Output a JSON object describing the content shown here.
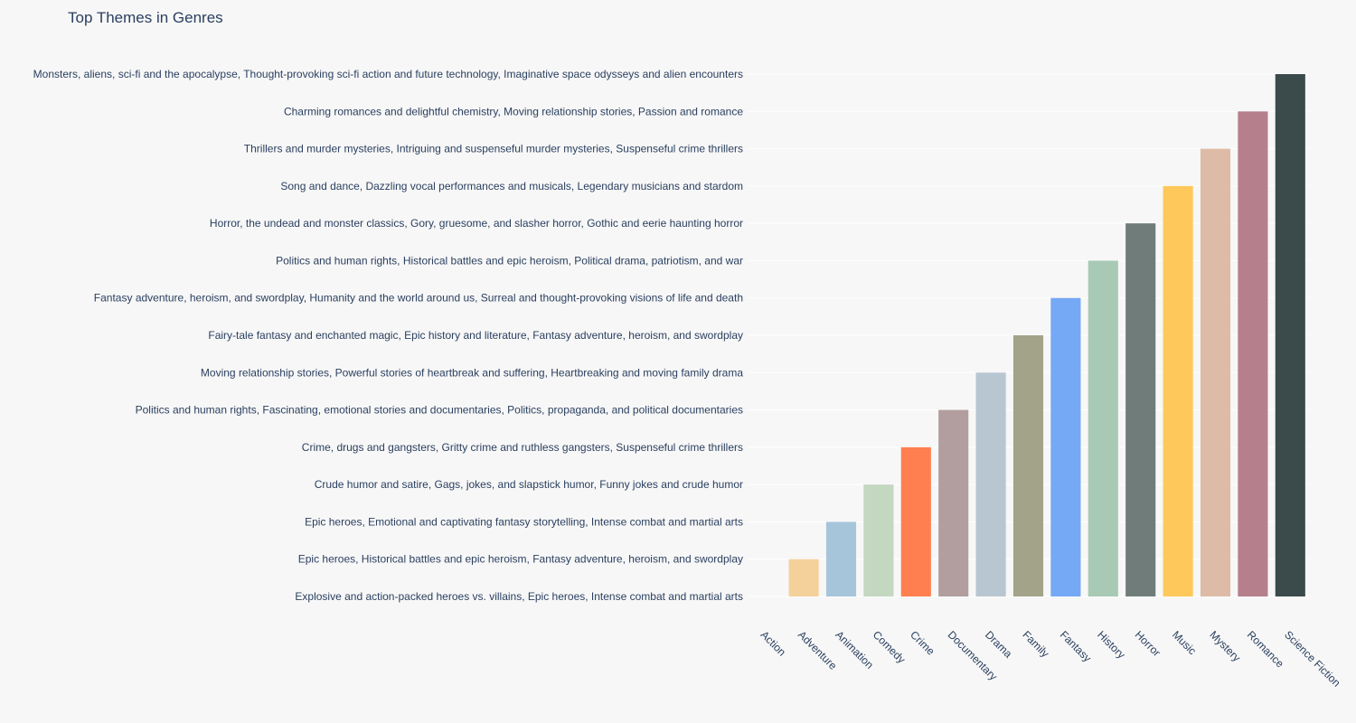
{
  "chart_data": {
    "type": "bar",
    "title": "Top Themes in Genres",
    "xlabel": "",
    "ylabel": "",
    "grid": true,
    "legend": "none",
    "categories": [
      "Action",
      "Adventure",
      "Animation",
      "Comedy",
      "Crime",
      "Documentary",
      "Drama",
      "Family",
      "Fantasy",
      "History",
      "Horror",
      "Music",
      "Mystery",
      "Romance",
      "Science Fiction"
    ],
    "y_categories": [
      "Explosive and action-packed heroes vs. villains, Epic heroes, Intense combat and martial arts",
      "Epic heroes, Historical battles and epic heroism, Fantasy adventure, heroism, and swordplay",
      "Epic heroes, Emotional and captivating fantasy storytelling, Intense combat and martial arts",
      "Crude humor and satire, Gags, jokes, and slapstick humor, Funny jokes and crude humor",
      "Crime, drugs and gangsters, Gritty crime and ruthless gangsters, Suspenseful crime thrillers",
      "Politics and human rights, Fascinating, emotional stories and documentaries, Politics, propaganda, and political documentaries",
      "Moving relationship stories, Powerful stories of heartbreak and suffering, Heartbreaking and moving family drama",
      "Fairy-tale fantasy and enchanted magic, Epic history and literature, Fantasy adventure, heroism, and swordplay",
      "Fantasy adventure, heroism, and swordplay, Humanity and the world around us, Surreal and thought-provoking visions of life and death",
      "Politics and human rights, Historical battles and epic heroism, Political drama, patriotism, and war",
      "Horror, the undead and monster classics, Gory, gruesome, and slasher horror, Gothic and eerie haunting horror",
      "Song and dance, Dazzling vocal performances and musicals, Legendary musicians and stardom",
      "Thrillers and murder mysteries, Intriguing and suspenseful murder mysteries, Suspenseful crime thrillers",
      "Charming romances and delightful chemistry, Moving relationship stories, Passion and romance",
      "Monsters, aliens, sci-fi and the apocalypse, Thought-provoking sci-fi action and future technology, Imaginative space odysseys and alien encounters"
    ],
    "values": [
      "Explosive and action-packed heroes vs. villains, Epic heroes, Intense combat and martial arts",
      "Epic heroes, Historical battles and epic heroism, Fantasy adventure, heroism, and swordplay",
      "Epic heroes, Emotional and captivating fantasy storytelling, Intense combat and martial arts",
      "Crude humor and satire, Gags, jokes, and slapstick humor, Funny jokes and crude humor",
      "Crime, drugs and gangsters, Gritty crime and ruthless gangsters, Suspenseful crime thrillers",
      "Politics and human rights, Fascinating, emotional stories and documentaries, Politics, propaganda, and political documentaries",
      "Moving relationship stories, Powerful stories of heartbreak and suffering, Heartbreaking and moving family drama",
      "Fairy-tale fantasy and enchanted magic, Epic history and literature, Fantasy adventure, heroism, and swordplay",
      "Fantasy adventure, heroism, and swordplay, Humanity and the world around us, Surreal and thought-provoking visions of life and death",
      "Politics and human rights, Historical battles and epic heroism, Political drama, patriotism, and war",
      "Horror, the undead and monster classics, Gory, gruesome, and slasher horror, Gothic and eerie haunting horror",
      "Song and dance, Dazzling vocal performances and musicals, Legendary musicians and stardom",
      "Thrillers and murder mysteries, Intriguing and suspenseful murder mysteries, Suspenseful crime thrillers",
      "Charming romances and delightful chemistry, Moving relationship stories, Passion and romance",
      "Monsters, aliens, sci-fi and the apocalypse, Thought-provoking sci-fi action and future technology, Imaginative space odysseys and alien encounters"
    ],
    "colors": [
      "#f7d7a6",
      "#f4d19b",
      "#a6c5da",
      "#c4d7c1",
      "#ff7f50",
      "#b29e9e",
      "#b8c6d1",
      "#a3a38a",
      "#75a8f5",
      "#a8c9b4",
      "#6f7c7a",
      "#fec85a",
      "#ddbba6",
      "#b5808b",
      "#3b4a4a"
    ]
  }
}
